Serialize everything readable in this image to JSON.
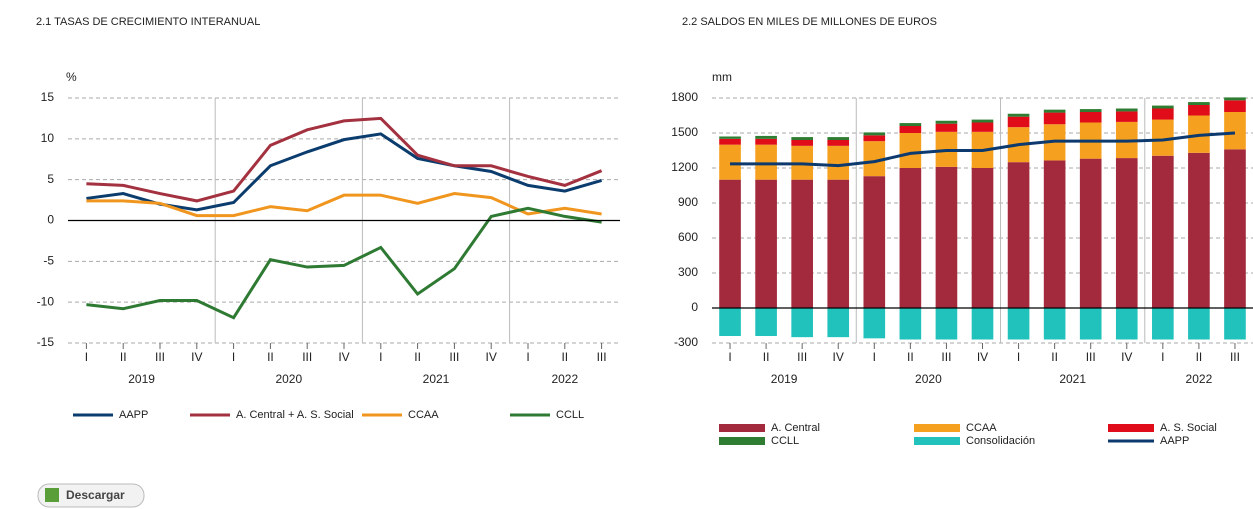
{
  "chart_data": [
    {
      "type": "line",
      "title": "2.1 TASAS DE CRECIMIENTO INTERANUAL",
      "y_unit": "%",
      "categories": [
        "I",
        "II",
        "III",
        "IV",
        "I",
        "II",
        "III",
        "IV",
        "I",
        "II",
        "III",
        "IV",
        "I",
        "II",
        "III"
      ],
      "years": [
        "2019",
        "2020",
        "2021",
        "2022"
      ],
      "ylim": [
        -15,
        15
      ],
      "yticks": [
        -15,
        -10,
        -5,
        0,
        5,
        10,
        15
      ],
      "grid": true,
      "series": [
        {
          "name": "AAPP",
          "color": "#0b3c6e",
          "values": [
            2.7,
            3.3,
            2.0,
            1.3,
            2.2,
            6.7,
            8.4,
            9.9,
            10.6,
            7.6,
            6.7,
            6.0,
            4.3,
            3.6,
            4.9
          ]
        },
        {
          "name": "A. Central + A. S. Social",
          "color": "#a3313f",
          "values": [
            4.5,
            4.3,
            3.3,
            2.4,
            3.6,
            9.2,
            11.1,
            12.2,
            12.5,
            8.0,
            6.7,
            6.7,
            5.4,
            4.3,
            6.1
          ]
        },
        {
          "name": "CCAA",
          "color": "#f0961e",
          "values": [
            2.4,
            2.4,
            2.1,
            0.6,
            0.6,
            1.7,
            1.2,
            3.1,
            3.1,
            2.1,
            3.3,
            2.8,
            0.8,
            1.5,
            0.8
          ]
        },
        {
          "name": "CCLL",
          "color": "#2e7a33",
          "values": [
            -10.3,
            -10.8,
            -9.8,
            -9.8,
            -11.9,
            -4.8,
            -5.7,
            -5.5,
            -3.3,
            -9.0,
            -5.9,
            0.5,
            1.5,
            0.5,
            -0.2
          ]
        }
      ]
    },
    {
      "type": "bar",
      "stacked": true,
      "title": "2.2 SALDOS EN MILES DE MILLONES DE EUROS",
      "y_unit": "mm",
      "categories": [
        "I",
        "II",
        "III",
        "IV",
        "I",
        "II",
        "III",
        "IV",
        "I",
        "II",
        "III",
        "IV",
        "I",
        "II",
        "III"
      ],
      "years": [
        "2019",
        "2020",
        "2021",
        "2022"
      ],
      "ylim": [
        -300,
        1800
      ],
      "yticks": [
        -300,
        0,
        300,
        600,
        900,
        1200,
        1500,
        1800
      ],
      "grid": true,
      "series": [
        {
          "name": "A. Central",
          "color": "#a3293c",
          "values": [
            1100,
            1100,
            1100,
            1100,
            1130,
            1200,
            1210,
            1200,
            1250,
            1265,
            1280,
            1285,
            1305,
            1330,
            1360
          ]
        },
        {
          "name": "CCAA",
          "color": "#f5a01e",
          "values": [
            300,
            300,
            290,
            290,
            300,
            300,
            300,
            310,
            300,
            310,
            310,
            310,
            310,
            320,
            320
          ]
        },
        {
          "name": "A. S. Social",
          "color": "#e00c1a",
          "values": [
            50,
            50,
            50,
            50,
            50,
            60,
            70,
            80,
            90,
            100,
            90,
            90,
            95,
            90,
            100
          ]
        },
        {
          "name": "CCLL",
          "color": "#2e7d32",
          "values": [
            20,
            25,
            25,
            25,
            25,
            25,
            25,
            25,
            25,
            25,
            25,
            25,
            25,
            25,
            25
          ]
        },
        {
          "name": "Consolidación",
          "color": "#22c2bc",
          "values": [
            -240,
            -240,
            -250,
            -250,
            -260,
            -270,
            -270,
            -270,
            -270,
            -270,
            -270,
            -270,
            -270,
            -270,
            -270
          ]
        },
        {
          "name": "AAPP",
          "color": "#0d3a6e",
          "type": "line",
          "values": [
            1235,
            1235,
            1235,
            1220,
            1255,
            1325,
            1350,
            1350,
            1400,
            1430,
            1430,
            1430,
            1440,
            1480,
            1500
          ]
        }
      ]
    }
  ],
  "download_button": {
    "label": "Descargar"
  }
}
